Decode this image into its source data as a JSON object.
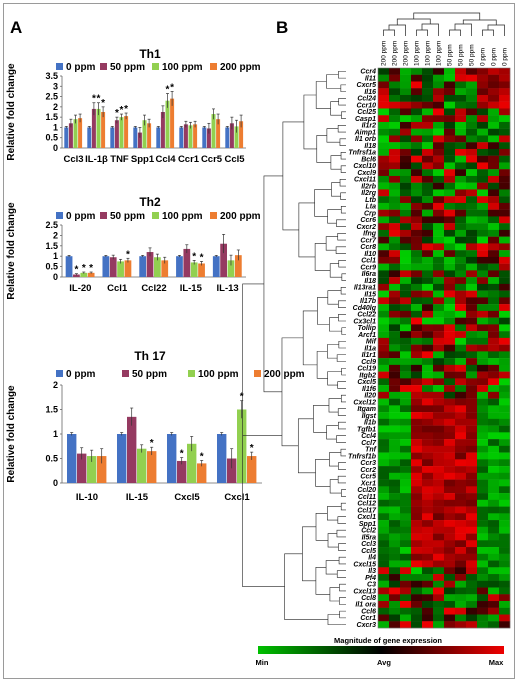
{
  "panel_a_letter": "A",
  "panel_b_letter": "B",
  "chart_data": [
    {
      "type": "bar",
      "title": "Th1",
      "ylabel": "Relative fold change",
      "ylim": [
        0,
        3.5
      ],
      "yticks": [
        "0",
        "0.5",
        "1",
        "1.5",
        "2",
        "2.5",
        "3",
        "3.5"
      ],
      "categories": [
        "Ccl3",
        "IL-1β",
        "TNF",
        "Spp1",
        "Ccl4",
        "Ccr1",
        "Ccr5",
        "Ccl5"
      ],
      "series": [
        {
          "name": "0 ppm",
          "color": "#4472c4",
          "values": [
            1,
            1,
            1,
            1,
            1,
            1,
            1,
            1
          ],
          "errors": [
            0.05,
            0.05,
            0.05,
            0.05,
            0.05,
            0.05,
            0.05,
            0.05
          ]
        },
        {
          "name": "50 ppm",
          "color": "#953a61",
          "values": [
            1.2,
            1.9,
            1.35,
            0.75,
            1.75,
            1.15,
            0.95,
            1.2
          ],
          "errors": [
            0.2,
            0.3,
            0.15,
            0.25,
            0.3,
            0.15,
            0.25,
            0.3
          ]
        },
        {
          "name": "100 ppm",
          "color": "#92d050",
          "values": [
            1.4,
            1.9,
            1.5,
            1.35,
            2.3,
            1.1,
            1.65,
            1.05
          ],
          "errors": [
            0.2,
            0.3,
            0.15,
            0.25,
            0.35,
            0.15,
            0.25,
            0.3
          ]
        },
        {
          "name": "200 ppm",
          "color": "#ed7d31",
          "values": [
            1.45,
            1.75,
            1.55,
            1.2,
            2.4,
            1.15,
            1.4,
            1.3
          ],
          "errors": [
            0.2,
            0.25,
            0.15,
            0.2,
            0.35,
            0.15,
            0.25,
            0.3
          ]
        }
      ],
      "stars": [
        [
          1,
          1
        ],
        [
          1,
          2
        ],
        [
          1,
          3
        ],
        [
          2,
          1
        ],
        [
          2,
          2
        ],
        [
          2,
          3
        ],
        [
          4,
          2
        ],
        [
          4,
          3
        ]
      ]
    },
    {
      "type": "bar",
      "title": "Th2",
      "ylabel": "Relative fold change",
      "ylim": [
        0,
        2.5
      ],
      "yticks": [
        "0",
        "0.5",
        "1",
        "1.5",
        "2",
        "2.5"
      ],
      "categories": [
        "IL-20",
        "Ccl1",
        "Ccl22",
        "IL-15",
        "IL-13"
      ],
      "series": [
        {
          "name": "0 ppm",
          "color": "#4472c4",
          "values": [
            1,
            1,
            1,
            1,
            1
          ],
          "errors": [
            0.04,
            0.04,
            0.04,
            0.04,
            0.04
          ]
        },
        {
          "name": "50 ppm",
          "color": "#953a61",
          "values": [
            0.12,
            0.95,
            1.2,
            1.35,
            1.6
          ],
          "errors": [
            0.04,
            0.1,
            0.2,
            0.2,
            0.45
          ]
        },
        {
          "name": "100 ppm",
          "color": "#92d050",
          "values": [
            0.2,
            0.75,
            0.95,
            0.7,
            0.8
          ],
          "errors": [
            0.04,
            0.1,
            0.15,
            0.1,
            0.25
          ]
        },
        {
          "name": "200 ppm",
          "color": "#ed7d31",
          "values": [
            0.2,
            0.8,
            0.8,
            0.65,
            1.05
          ],
          "errors": [
            0.04,
            0.1,
            0.15,
            0.1,
            0.25
          ]
        }
      ],
      "stars": [
        [
          0,
          1
        ],
        [
          0,
          2
        ],
        [
          0,
          3
        ],
        [
          1,
          3
        ],
        [
          3,
          2
        ],
        [
          3,
          3
        ]
      ]
    },
    {
      "type": "bar",
      "title": "Th 17",
      "ylabel": "Relative fold change",
      "ylim": [
        0,
        2
      ],
      "yticks": [
        "0",
        "0.5",
        "1",
        "1.5",
        "2"
      ],
      "categories": [
        "IL-10",
        "IL-15",
        "Cxcl5",
        "Cxcl1"
      ],
      "series": [
        {
          "name": "0 ppm",
          "color": "#4472c4",
          "values": [
            1,
            1,
            1,
            1
          ],
          "errors": [
            0.03,
            0.03,
            0.03,
            0.03
          ]
        },
        {
          "name": "50 ppm",
          "color": "#953a61",
          "values": [
            0.6,
            1.35,
            0.45,
            0.5
          ],
          "errors": [
            0.12,
            0.18,
            0.07,
            0.2
          ]
        },
        {
          "name": "100 ppm",
          "color": "#92d050",
          "values": [
            0.55,
            0.7,
            0.8,
            1.5
          ],
          "errors": [
            0.12,
            0.08,
            0.15,
            0.18
          ]
        },
        {
          "name": "200 ppm",
          "color": "#ed7d31",
          "values": [
            0.55,
            0.65,
            0.4,
            0.55
          ],
          "errors": [
            0.15,
            0.08,
            0.06,
            0.08
          ]
        }
      ],
      "stars": [
        [
          1,
          3
        ],
        [
          2,
          1
        ],
        [
          2,
          3
        ],
        [
          3,
          2
        ],
        [
          3,
          3
        ]
      ]
    },
    {
      "type": "heatmap",
      "column_labels": [
        "200 ppm",
        "200 ppm",
        "200 ppm",
        "100 ppm",
        "100 ppm",
        "100 ppm",
        "50 ppm",
        "50 ppm",
        "50 ppm",
        "0 ppm",
        "0 ppm",
        "0 ppm"
      ],
      "row_labels": [
        "Ccr4",
        "Il11",
        "Cxcr5",
        "Il16",
        "Ccl24",
        "Ccr10",
        "Ccl25",
        "Casp1",
        "Il1r2",
        "Aimp1",
        "Il1 orb",
        "Il18",
        "Tnfrsf1a",
        "Bcl6",
        "Cxcl10",
        "Cxcl9",
        "Cxcl11",
        "Il2rb",
        "Il2rg",
        "Ltb",
        "Lta",
        "Crp",
        "Ccr6",
        "Cxcr2",
        "Ifng",
        "Ccr7",
        "Ccr8",
        "Il10",
        "Ccl1",
        "Ccr9",
        "Il6ra",
        "Il18",
        "Il13ra1",
        "Il15",
        "Il17b",
        "Cd40lg",
        "Ccl22",
        "Cx3cl1",
        "Tollip",
        "Arcf1",
        "Mif",
        "Il1a",
        "Il1r1",
        "Ccl9",
        "Ccl19",
        "Itgb2",
        "Cxcl5",
        "Il1f6",
        "Il20",
        "Cxcl12",
        "Itgam",
        "Ilgst",
        "Il1b",
        "Tgfb1",
        "Ccl4",
        "Ccl7",
        "Tnf",
        "Tnfrsf1b",
        "Ccr3",
        "Ccr2",
        "Ccr5",
        "Xcr1",
        "Ccl20",
        "Ccl11",
        "Ccl12",
        "Ccl17",
        "Cxcl1",
        "Spp1",
        "Ccl2",
        "Il5ra",
        "Ccl3",
        "Ccl5",
        "Il4",
        "Cxcl15",
        "Il3",
        "Pf4",
        "C3",
        "Cxcl13",
        "Ccl8",
        "Il1 ora",
        "Ccl6",
        "Ccr1",
        "Cxcr3"
      ],
      "legend_title": "Magnitude of gene expression",
      "scale_labels": [
        "Min",
        "Avg",
        "Max"
      ],
      "color_scale": [
        "#00c000",
        "#000000",
        "#ee0000"
      ]
    }
  ]
}
